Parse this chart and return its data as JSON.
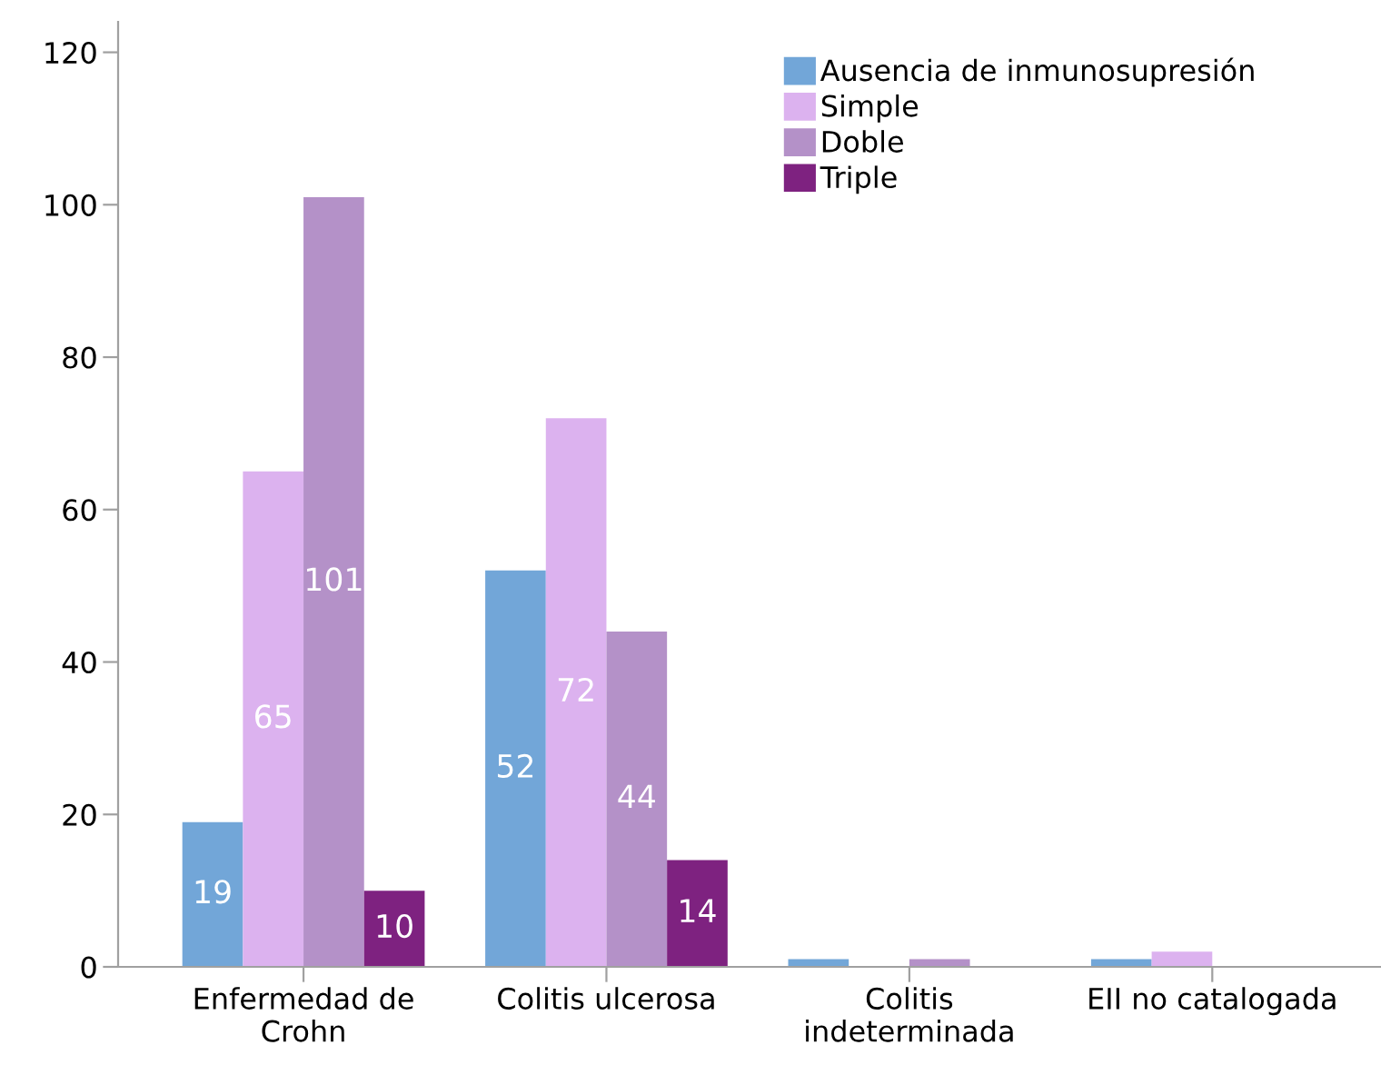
{
  "chart_data": {
    "type": "bar",
    "categories": [
      "Enfermedad de\nCrohn",
      "Colitis ulcerosa",
      "Colitis\nindeterminada",
      "EII no catalogada"
    ],
    "series": [
      {
        "name": "Ausencia de inmunosupresión",
        "color": "#72a6d8",
        "values": [
          19,
          52,
          1,
          1
        ],
        "value_labels": [
          "19",
          "52",
          null,
          null
        ]
      },
      {
        "name": "Simple",
        "color": "#dcb2ef",
        "values": [
          65,
          72,
          0,
          2
        ],
        "value_labels": [
          "65",
          "72",
          null,
          null
        ]
      },
      {
        "name": "Doble",
        "color": "#b491c8",
        "values": [
          101,
          44,
          1,
          0
        ],
        "value_labels": [
          "101",
          "44",
          null,
          null
        ]
      },
      {
        "name": "Triple",
        "color": "#7e2280",
        "values": [
          10,
          14,
          0,
          0
        ],
        "value_labels": [
          "10",
          "14",
          null,
          null
        ]
      }
    ],
    "ylim": [
      0,
      124
    ],
    "yticks": [
      0,
      20,
      40,
      60,
      80,
      100,
      120
    ],
    "grid": false,
    "legend": "top right"
  }
}
